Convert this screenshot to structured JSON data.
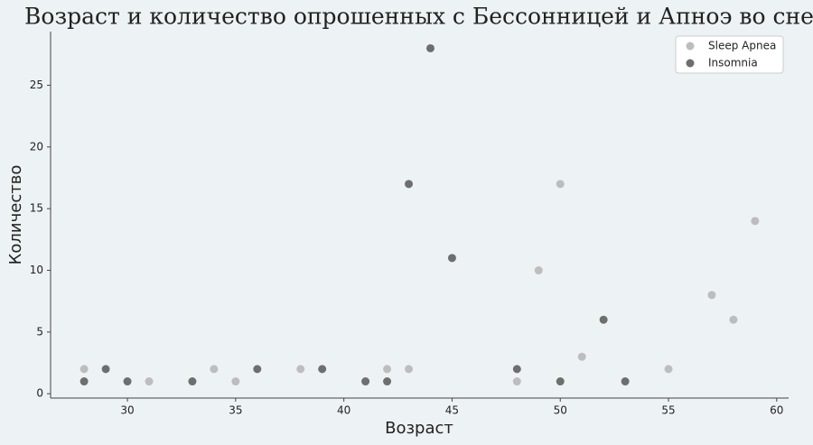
{
  "chart_data": {
    "type": "scatter",
    "title": "Возраст и количество опрошенных с Бессонницей и Апноэ во сне",
    "x_label": "Возраст",
    "y_label": "Количество",
    "series": [
      {
        "name": "Sleep Apnea",
        "color": "#bdbdbd",
        "x": [
          28,
          31,
          34,
          35,
          38,
          42,
          43,
          48,
          49,
          50,
          51,
          55,
          57,
          58,
          59
        ],
        "values": [
          2,
          1,
          2,
          1,
          2,
          2,
          2,
          1,
          10,
          17,
          3,
          2,
          8,
          6,
          14
        ]
      },
      {
        "name": "Insomnia",
        "color": "#6e6e6e",
        "x": [
          28,
          29,
          30,
          33,
          36,
          39,
          41,
          42,
          43,
          44,
          45,
          48,
          50,
          52,
          53
        ],
        "values": [
          1,
          2,
          1,
          1,
          2,
          2,
          1,
          1,
          17,
          28,
          11,
          2,
          1,
          6,
          1
        ]
      }
    ],
    "xlim": [
      26.45,
      60.55
    ],
    "ylim": [
      -0.35,
      29.35
    ],
    "xticks": [
      30,
      35,
      40,
      45,
      50,
      55,
      60
    ],
    "yticks": [
      0,
      5,
      10,
      15,
      20,
      25
    ],
    "legend": "upper right"
  }
}
